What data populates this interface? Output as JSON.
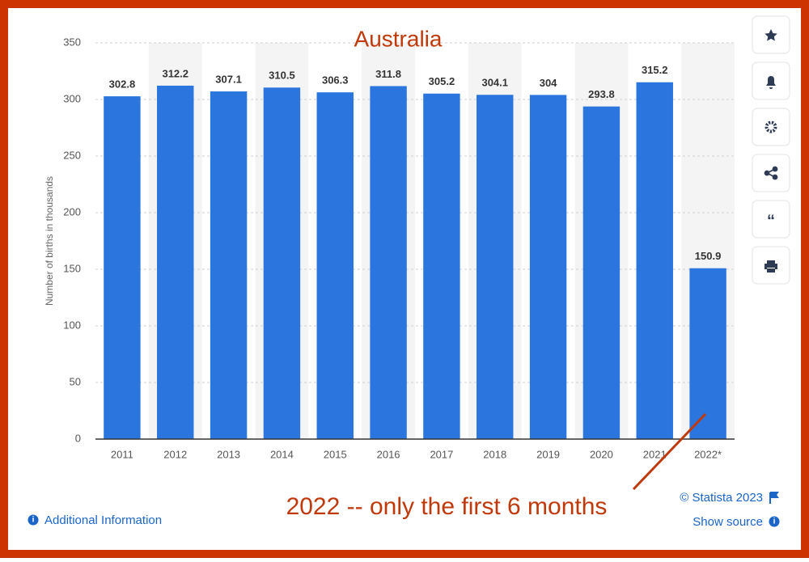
{
  "chart_data": {
    "type": "bar",
    "title": "Australia",
    "annotation": "2022 -- only the first 6 months",
    "y_label": "Number of births in thousands",
    "categories": [
      "2011",
      "2012",
      "2013",
      "2014",
      "2015",
      "2016",
      "2017",
      "2018",
      "2019",
      "2020",
      "2021",
      "2022*"
    ],
    "values": [
      302.8,
      312.2,
      307.1,
      310.5,
      306.3,
      311.8,
      305.2,
      304.1,
      304,
      293.8,
      315.2,
      150.9
    ],
    "color": "#2b76de",
    "ylim": [
      0,
      350
    ],
    "yticks": [
      0,
      50,
      100,
      150,
      200,
      250,
      300,
      350
    ],
    "grid": true
  },
  "footer": {
    "copyright": "© Statista 2023",
    "show_source": "Show source",
    "additional_info": "Additional Information"
  }
}
